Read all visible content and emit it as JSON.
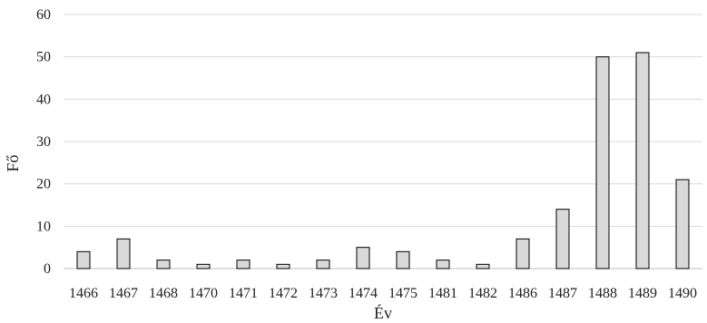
{
  "chart_data": {
    "type": "bar",
    "title": "",
    "xlabel": "Év",
    "ylabel": "Fő",
    "categories": [
      "1466",
      "1467",
      "1468",
      "1470",
      "1471",
      "1472",
      "1473",
      "1474",
      "1475",
      "1481",
      "1482",
      "1486",
      "1487",
      "1488",
      "1489",
      "1490"
    ],
    "values": [
      4,
      7,
      2,
      1,
      2,
      1,
      2,
      5,
      4,
      2,
      1,
      7,
      14,
      50,
      51,
      21
    ],
    "ylim": [
      0,
      60
    ],
    "yticks": [
      "0",
      "10",
      "20",
      "30",
      "40",
      "50",
      "60"
    ],
    "grid": "horizontal",
    "legend": "none",
    "colors": {
      "bar_fill": "#d9d9d9",
      "bar_stroke": "#000000",
      "grid": "#d9d9d9"
    }
  }
}
